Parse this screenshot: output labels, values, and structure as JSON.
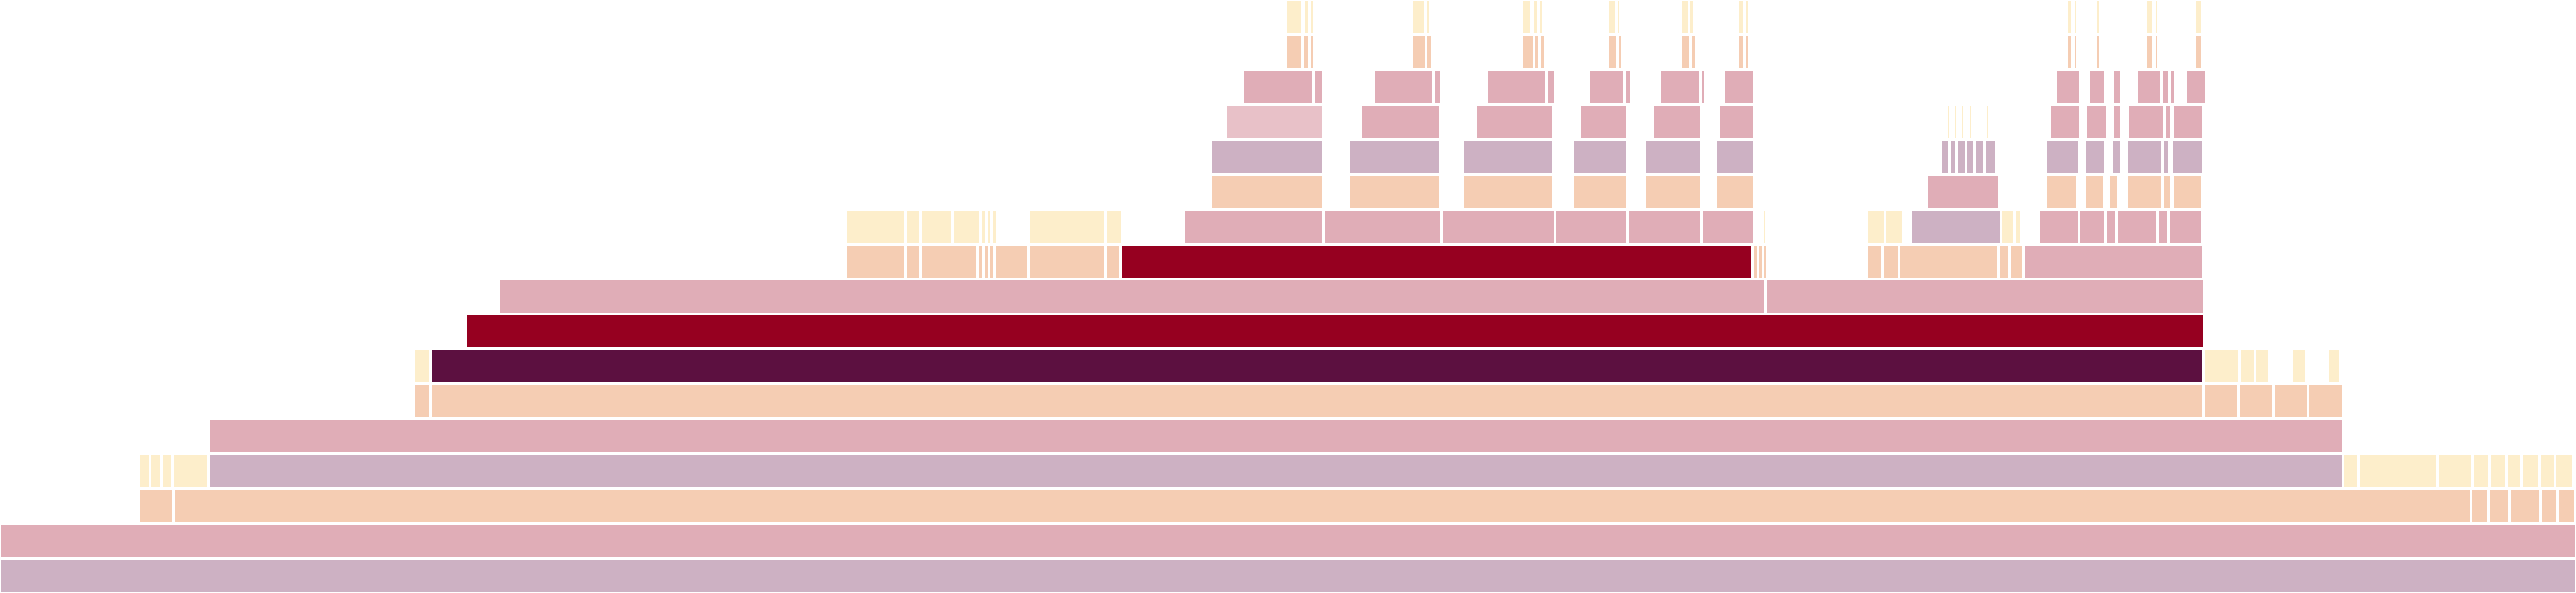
{
  "chart_data": {
    "type": "flamegraph",
    "title": "",
    "xlabel": "",
    "ylabel": "",
    "units": "samples",
    "x_range": [
      0,
      3691
    ],
    "depth_count": 17,
    "depth_order": "root-at-bottom",
    "labels_visible": false,
    "palette": {
      "cream": "#fdeecb",
      "peach": "#f5cdb3",
      "pink": "#e0adb7",
      "lightpink": "#e8c1c8",
      "mauve": "#cdb1c3",
      "crimson": "#960020",
      "plum": "#5c1040"
    },
    "frames": [
      [
        0,
        0,
        3691,
        "mauve"
      ],
      [
        1,
        0,
        3691,
        "pink"
      ],
      [
        2,
        200,
        48,
        "peach"
      ],
      [
        2,
        250,
        3290,
        "peach"
      ],
      [
        2,
        3541,
        24,
        "peach"
      ],
      [
        2,
        3567,
        28,
        "peach"
      ],
      [
        2,
        3597,
        42,
        "peach"
      ],
      [
        2,
        3641,
        22,
        "peach"
      ],
      [
        2,
        3665,
        24,
        "peach"
      ],
      [
        3,
        200,
        14,
        "cream"
      ],
      [
        3,
        216,
        14,
        "cream"
      ],
      [
        3,
        232,
        14,
        "cream"
      ],
      [
        3,
        248,
        50,
        "cream"
      ],
      [
        3,
        300,
        3056,
        "mauve"
      ],
      [
        3,
        3358,
        20,
        "cream"
      ],
      [
        3,
        3380,
        112,
        "cream"
      ],
      [
        3,
        3494,
        48,
        "cream"
      ],
      [
        3,
        3544,
        22,
        "cream"
      ],
      [
        3,
        3568,
        22,
        "cream"
      ],
      [
        3,
        3592,
        20,
        "cream"
      ],
      [
        3,
        3614,
        24,
        "cream"
      ],
      [
        3,
        3640,
        20,
        "cream"
      ],
      [
        3,
        3662,
        22,
        "cream"
      ],
      [
        3,
        3666,
        20,
        "cream"
      ],
      [
        4,
        300,
        3056,
        "pink"
      ],
      [
        5,
        594,
        22,
        "peach"
      ],
      [
        5,
        618,
        2538,
        "peach"
      ],
      [
        5,
        3158,
        48,
        "peach"
      ],
      [
        5,
        3208,
        48,
        "peach"
      ],
      [
        5,
        3258,
        48,
        "peach"
      ],
      [
        5,
        3308,
        48,
        "peach"
      ],
      [
        6,
        594,
        22,
        "cream"
      ],
      [
        6,
        618,
        2538,
        "plum"
      ],
      [
        6,
        3158,
        50,
        "cream"
      ],
      [
        6,
        3210,
        20,
        "cream"
      ],
      [
        6,
        3232,
        18,
        "cream"
      ],
      [
        6,
        3284,
        20,
        "cream"
      ],
      [
        6,
        3336,
        16,
        "cream"
      ],
      [
        7,
        668,
        2490,
        "crimson"
      ],
      [
        8,
        716,
        1813,
        "pink"
      ],
      [
        8,
        2531,
        626,
        "pink"
      ],
      [
        9,
        1212,
        84,
        "peach"
      ],
      [
        9,
        1298,
        20,
        "peach"
      ],
      [
        9,
        1320,
        80,
        "peach"
      ],
      [
        9,
        1402,
        6,
        "peach"
      ],
      [
        9,
        1410,
        6,
        "peach"
      ],
      [
        9,
        1418,
        6,
        "peach"
      ],
      [
        9,
        1426,
        6,
        "peach"
      ],
      [
        9,
        1429,
        44,
        "peach"
      ],
      [
        9,
        1475,
        108,
        "peach"
      ],
      [
        9,
        1585,
        20,
        "peach"
      ],
      [
        9,
        1607,
        903,
        "crimson"
      ],
      [
        9,
        2512,
        6,
        "peach"
      ],
      [
        9,
        2520,
        6,
        "peach"
      ],
      [
        9,
        2526,
        6,
        "peach"
      ],
      [
        9,
        2676,
        20,
        "peach"
      ],
      [
        9,
        2698,
        22,
        "peach"
      ],
      [
        9,
        2722,
        140,
        "peach"
      ],
      [
        9,
        2864,
        14,
        "peach"
      ],
      [
        9,
        2880,
        18,
        "peach"
      ],
      [
        9,
        2900,
        256,
        "pink"
      ],
      [
        10,
        1212,
        84,
        "cream"
      ],
      [
        10,
        1298,
        20,
        "cream"
      ],
      [
        10,
        1320,
        44,
        "cream"
      ],
      [
        10,
        1366,
        38,
        "cream"
      ],
      [
        10,
        1406,
        6,
        "cream"
      ],
      [
        10,
        1414,
        6,
        "cream"
      ],
      [
        10,
        1422,
        6,
        "cream"
      ],
      [
        10,
        1475,
        108,
        "cream"
      ],
      [
        10,
        1585,
        22,
        "cream"
      ],
      [
        10,
        1697,
        198,
        "pink"
      ],
      [
        10,
        1897,
        168,
        "pink"
      ],
      [
        10,
        2067,
        160,
        "pink"
      ],
      [
        10,
        2229,
        102,
        "pink"
      ],
      [
        10,
        2333,
        104,
        "pink"
      ],
      [
        10,
        2439,
        74,
        "pink"
      ],
      [
        10,
        2526,
        4,
        "cream"
      ],
      [
        10,
        2676,
        24,
        "cream"
      ],
      [
        10,
        2702,
        24,
        "cream"
      ],
      [
        10,
        2738,
        128,
        "mauve"
      ],
      [
        10,
        2868,
        18,
        "cream"
      ],
      [
        10,
        2888,
        8,
        "cream"
      ],
      [
        10,
        2922,
        56,
        "pink"
      ],
      [
        10,
        2980,
        36,
        "pink"
      ],
      [
        10,
        3018,
        14,
        "pink"
      ],
      [
        10,
        3034,
        56,
        "pink"
      ],
      [
        10,
        3092,
        14,
        "pink"
      ],
      [
        10,
        3108,
        46,
        "pink"
      ],
      [
        11,
        1735,
        160,
        "peach"
      ],
      [
        11,
        1933,
        130,
        "peach"
      ],
      [
        11,
        2097,
        128,
        "peach"
      ],
      [
        11,
        2255,
        76,
        "peach"
      ],
      [
        11,
        2357,
        80,
        "peach"
      ],
      [
        11,
        2459,
        54,
        "peach"
      ],
      [
        11,
        2762,
        102,
        "pink"
      ],
      [
        11,
        2932,
        44,
        "peach"
      ],
      [
        11,
        2988,
        26,
        "peach"
      ],
      [
        11,
        3022,
        12,
        "peach"
      ],
      [
        11,
        3048,
        50,
        "peach"
      ],
      [
        11,
        3100,
        10,
        "peach"
      ],
      [
        11,
        3114,
        40,
        "peach"
      ],
      [
        12,
        1735,
        160,
        "mauve"
      ],
      [
        12,
        1933,
        130,
        "mauve"
      ],
      [
        12,
        2097,
        128,
        "mauve"
      ],
      [
        12,
        2255,
        76,
        "mauve"
      ],
      [
        12,
        2357,
        80,
        "mauve"
      ],
      [
        12,
        2459,
        54,
        "mauve"
      ],
      [
        12,
        2782,
        10,
        "mauve"
      ],
      [
        12,
        2794,
        8,
        "mauve"
      ],
      [
        12,
        2804,
        12,
        "mauve"
      ],
      [
        12,
        2818,
        10,
        "mauve"
      ],
      [
        12,
        2830,
        12,
        "mauve"
      ],
      [
        12,
        2844,
        16,
        "mauve"
      ],
      [
        12,
        2932,
        46,
        "mauve"
      ],
      [
        12,
        2988,
        28,
        "mauve"
      ],
      [
        12,
        3026,
        12,
        "mauve"
      ],
      [
        12,
        3048,
        50,
        "mauve"
      ],
      [
        12,
        3100,
        8,
        "mauve"
      ],
      [
        12,
        3112,
        44,
        "mauve"
      ],
      [
        13,
        1757,
        138,
        "lightpink"
      ],
      [
        13,
        1951,
        112,
        "pink"
      ],
      [
        13,
        2115,
        110,
        "pink"
      ],
      [
        13,
        2265,
        66,
        "pink"
      ],
      [
        13,
        2369,
        68,
        "pink"
      ],
      [
        13,
        2463,
        50,
        "pink"
      ],
      [
        13,
        2790,
        3,
        "cream"
      ],
      [
        13,
        2800,
        3,
        "cream"
      ],
      [
        13,
        2810,
        3,
        "cream"
      ],
      [
        13,
        2822,
        3,
        "cream"
      ],
      [
        13,
        2834,
        3,
        "cream"
      ],
      [
        13,
        2846,
        3,
        "cream"
      ],
      [
        13,
        2938,
        42,
        "pink"
      ],
      [
        13,
        2990,
        28,
        "pink"
      ],
      [
        13,
        3028,
        10,
        "pink"
      ],
      [
        13,
        3050,
        50,
        "pink"
      ],
      [
        13,
        3102,
        8,
        "pink"
      ],
      [
        13,
        3114,
        42,
        "pink"
      ],
      [
        14,
        1781,
        100,
        "pink"
      ],
      [
        14,
        1883,
        12,
        "pink"
      ],
      [
        14,
        1969,
        84,
        "pink"
      ],
      [
        14,
        2055,
        10,
        "pink"
      ],
      [
        14,
        2131,
        84,
        "pink"
      ],
      [
        14,
        2217,
        10,
        "pink"
      ],
      [
        14,
        2277,
        50,
        "pink"
      ],
      [
        14,
        2329,
        8,
        "pink"
      ],
      [
        14,
        2379,
        56,
        "pink"
      ],
      [
        14,
        2437,
        6,
        "pink"
      ],
      [
        14,
        2471,
        42,
        "pink"
      ],
      [
        14,
        2946,
        34,
        "pink"
      ],
      [
        14,
        2994,
        22,
        "pink"
      ],
      [
        14,
        3028,
        10,
        "pink"
      ],
      [
        14,
        3062,
        34,
        "pink"
      ],
      [
        14,
        3098,
        10,
        "pink"
      ],
      [
        14,
        3110,
        6,
        "pink"
      ],
      [
        14,
        3132,
        28,
        "pink"
      ],
      [
        15,
        1843,
        22,
        "peach"
      ],
      [
        15,
        1867,
        8,
        "peach"
      ],
      [
        15,
        1877,
        6,
        "peach"
      ],
      [
        15,
        2023,
        20,
        "peach"
      ],
      [
        15,
        2043,
        8,
        "peach"
      ],
      [
        15,
        2181,
        16,
        "peach"
      ],
      [
        15,
        2199,
        6,
        "peach"
      ],
      [
        15,
        2207,
        6,
        "peach"
      ],
      [
        15,
        2305,
        12,
        "peach"
      ],
      [
        15,
        2319,
        4,
        "peach"
      ],
      [
        15,
        2409,
        12,
        "peach"
      ],
      [
        15,
        2423,
        6,
        "peach"
      ],
      [
        15,
        2491,
        8,
        "peach"
      ],
      [
        15,
        2501,
        4,
        "peach"
      ],
      [
        15,
        2962,
        6,
        "peach"
      ],
      [
        15,
        2972,
        4,
        "peach"
      ],
      [
        15,
        3004,
        4,
        "peach"
      ],
      [
        15,
        3076,
        8,
        "peach"
      ],
      [
        15,
        3088,
        4,
        "peach"
      ],
      [
        15,
        3146,
        8,
        "peach"
      ],
      [
        16,
        1843,
        22,
        "cream"
      ],
      [
        16,
        1869,
        6,
        "cream"
      ],
      [
        16,
        1877,
        5,
        "cream"
      ],
      [
        16,
        2023,
        18,
        "cream"
      ],
      [
        16,
        2043,
        6,
        "cream"
      ],
      [
        16,
        2181,
        12,
        "cream"
      ],
      [
        16,
        2197,
        6,
        "cream"
      ],
      [
        16,
        2205,
        6,
        "cream"
      ],
      [
        16,
        2305,
        10,
        "cream"
      ],
      [
        16,
        2317,
        4,
        "cream"
      ],
      [
        16,
        2409,
        10,
        "cream"
      ],
      [
        16,
        2421,
        6,
        "cream"
      ],
      [
        16,
        2491,
        8,
        "cream"
      ],
      [
        16,
        2501,
        4,
        "cream"
      ],
      [
        16,
        2962,
        6,
        "cream"
      ],
      [
        16,
        2972,
        4,
        "cream"
      ],
      [
        16,
        3004,
        4,
        "cream"
      ],
      [
        16,
        3076,
        8,
        "cream"
      ],
      [
        16,
        3088,
        4,
        "cream"
      ],
      [
        16,
        3146,
        8,
        "cream"
      ]
    ]
  }
}
